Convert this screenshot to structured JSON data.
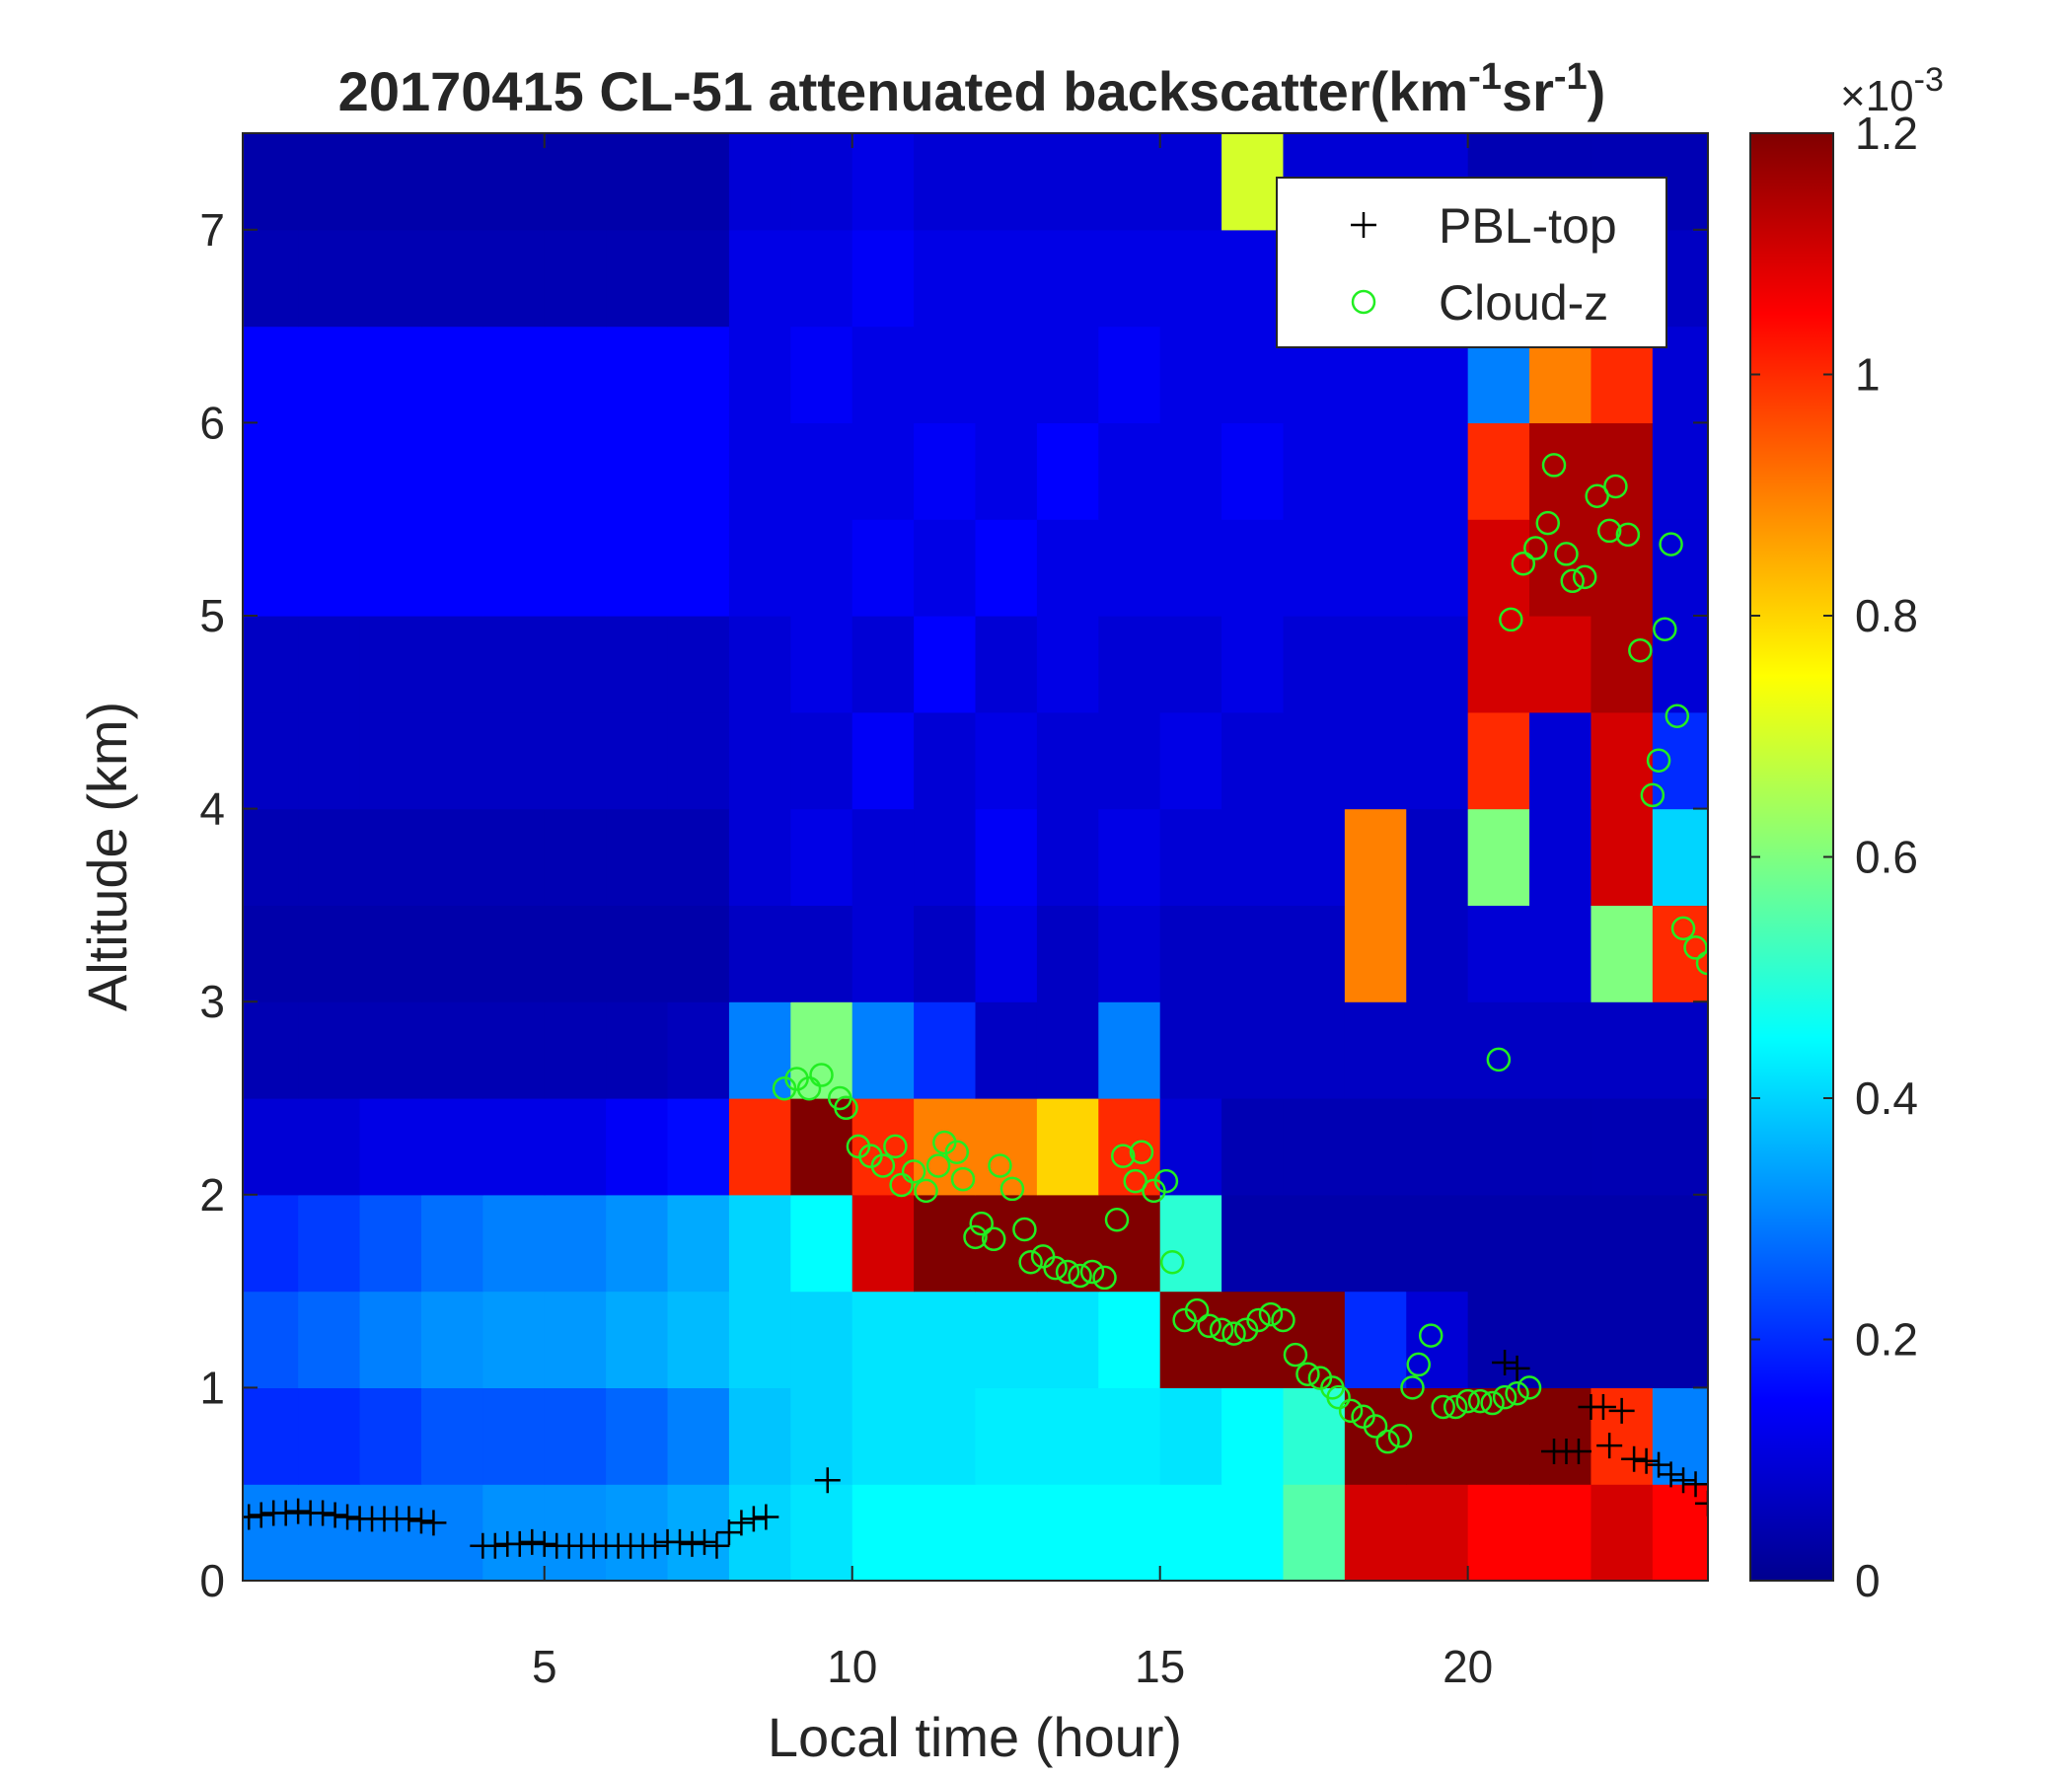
{
  "chart_data": {
    "type": "heatmap",
    "title_parts": [
      "20170415  CL-51 attenuated backscatter(km",
      "-1",
      "sr",
      "-1",
      ")"
    ],
    "xlabel": "Local time (hour)",
    "ylabel": "Altitude (km)",
    "xlim": [
      0.1,
      23.9
    ],
    "ylim": [
      0,
      7.5
    ],
    "xticks": [
      5,
      10,
      15,
      20
    ],
    "yticks": [
      0,
      1,
      2,
      3,
      4,
      5,
      6,
      7
    ],
    "colorbar": {
      "clim": [
        0,
        1.2
      ],
      "ticks": [
        0,
        0.2,
        0.4,
        0.6,
        0.8,
        1,
        1.2
      ],
      "exponent_parts": [
        "×10",
        "-3"
      ],
      "colormap": "jet"
    },
    "x": [
      0.5,
      1.5,
      2.5,
      3.5,
      4.5,
      5.5,
      6.5,
      7.5,
      8.5,
      9.5,
      10.5,
      11.5,
      12.5,
      13.5,
      14.5,
      15.5,
      16.5,
      17.5,
      18.5,
      19.5,
      20.5,
      21.5,
      22.5,
      23.5
    ],
    "y": [
      0.25,
      0.75,
      1.25,
      1.75,
      2.25,
      2.75,
      3.25,
      3.75,
      4.25,
      4.75,
      5.25,
      5.75,
      6.25,
      6.75,
      7.25
    ],
    "z": [
      [
        0.3,
        0.3,
        0.3,
        0.3,
        0.32,
        0.32,
        0.33,
        0.35,
        0.4,
        0.42,
        0.45,
        0.45,
        0.45,
        0.45,
        0.45,
        0.45,
        0.45,
        0.55,
        1.1,
        1.1,
        1.05,
        1.05,
        1.1,
        1.05
      ],
      [
        0.2,
        0.2,
        0.22,
        0.25,
        0.25,
        0.25,
        0.27,
        0.3,
        0.38,
        0.4,
        0.42,
        0.42,
        0.43,
        0.43,
        0.43,
        0.42,
        0.45,
        0.5,
        1.2,
        1.2,
        1.2,
        1.2,
        1.0,
        0.3
      ],
      [
        0.25,
        0.27,
        0.3,
        0.32,
        0.33,
        0.33,
        0.35,
        0.37,
        0.4,
        0.4,
        0.42,
        0.42,
        0.42,
        0.42,
        0.45,
        1.2,
        1.2,
        1.2,
        0.2,
        0.1,
        0.05,
        0.05,
        0.05,
        0.05
      ],
      [
        0.2,
        0.22,
        0.25,
        0.28,
        0.3,
        0.3,
        0.32,
        0.35,
        0.4,
        0.45,
        1.1,
        1.2,
        1.2,
        1.2,
        1.2,
        0.5,
        0.05,
        0.05,
        0.05,
        0.05,
        0.05,
        0.05,
        0.05,
        0.05
      ],
      [
        0.1,
        0.1,
        0.12,
        0.12,
        0.12,
        0.12,
        0.14,
        0.16,
        1.0,
        1.2,
        1.0,
        0.9,
        0.9,
        0.8,
        1.0,
        0.1,
        0.06,
        0.06,
        0.06,
        0.06,
        0.06,
        0.06,
        0.06,
        0.06
      ],
      [
        0.06,
        0.06,
        0.06,
        0.06,
        0.06,
        0.06,
        0.06,
        0.07,
        0.3,
        0.6,
        0.3,
        0.2,
        0.08,
        0.08,
        0.3,
        0.08,
        0.08,
        0.08,
        0.08,
        0.08,
        0.08,
        0.08,
        0.08,
        0.08
      ],
      [
        0.05,
        0.05,
        0.05,
        0.05,
        0.05,
        0.05,
        0.05,
        0.05,
        0.08,
        0.08,
        0.1,
        0.08,
        0.12,
        0.08,
        0.1,
        0.08,
        0.08,
        0.08,
        0.9,
        0.08,
        0.1,
        0.1,
        0.6,
        1.0
      ],
      [
        0.06,
        0.06,
        0.06,
        0.06,
        0.06,
        0.06,
        0.06,
        0.06,
        0.1,
        0.12,
        0.1,
        0.1,
        0.14,
        0.1,
        0.12,
        0.1,
        0.1,
        0.1,
        0.9,
        0.08,
        0.6,
        0.1,
        1.1,
        0.4
      ],
      [
        0.08,
        0.08,
        0.08,
        0.08,
        0.08,
        0.08,
        0.08,
        0.08,
        0.1,
        0.1,
        0.14,
        0.1,
        0.12,
        0.1,
        0.1,
        0.12,
        0.1,
        0.1,
        0.1,
        0.1,
        1.0,
        0.1,
        1.1,
        0.2
      ],
      [
        0.08,
        0.08,
        0.08,
        0.08,
        0.08,
        0.08,
        0.08,
        0.08,
        0.1,
        0.12,
        0.1,
        0.15,
        0.1,
        0.12,
        0.1,
        0.1,
        0.12,
        0.1,
        0.1,
        0.1,
        1.1,
        1.1,
        1.15,
        0.1
      ],
      [
        0.15,
        0.15,
        0.15,
        0.15,
        0.15,
        0.15,
        0.15,
        0.15,
        0.12,
        0.12,
        0.14,
        0.12,
        0.15,
        0.12,
        0.12,
        0.12,
        0.12,
        0.12,
        0.12,
        0.12,
        1.1,
        1.15,
        1.15,
        0.1
      ],
      [
        0.15,
        0.15,
        0.15,
        0.15,
        0.15,
        0.15,
        0.15,
        0.15,
        0.12,
        0.12,
        0.12,
        0.14,
        0.12,
        0.15,
        0.12,
        0.12,
        0.14,
        0.12,
        0.12,
        0.12,
        1.0,
        1.15,
        1.15,
        0.1
      ],
      [
        0.15,
        0.15,
        0.15,
        0.15,
        0.15,
        0.15,
        0.15,
        0.15,
        0.12,
        0.14,
        0.12,
        0.12,
        0.12,
        0.12,
        0.14,
        0.12,
        0.12,
        0.12,
        0.12,
        0.12,
        0.3,
        0.9,
        1.0,
        0.1
      ],
      [
        0.06,
        0.06,
        0.06,
        0.06,
        0.06,
        0.06,
        0.06,
        0.06,
        0.12,
        0.12,
        0.14,
        0.12,
        0.12,
        0.12,
        0.12,
        0.12,
        0.12,
        0.12,
        0.12,
        0.12,
        0.08,
        0.08,
        0.08,
        0.08
      ],
      [
        0.05,
        0.05,
        0.05,
        0.05,
        0.05,
        0.05,
        0.05,
        0.05,
        0.1,
        0.1,
        0.12,
        0.1,
        0.1,
        0.1,
        0.1,
        0.1,
        0.7,
        0.1,
        0.1,
        0.1,
        0.06,
        0.06,
        0.06,
        0.06
      ]
    ],
    "legend": "upper right",
    "series": [
      {
        "name": "PBL-top",
        "color": "#000000",
        "marker": "plus",
        "x": [
          0.2,
          0.4,
          0.6,
          0.8,
          1.0,
          1.2,
          1.4,
          1.6,
          1.8,
          2.0,
          2.2,
          2.4,
          2.6,
          2.8,
          3.0,
          3.2,
          4.0,
          4.2,
          4.4,
          4.6,
          4.8,
          5.0,
          5.2,
          5.4,
          5.6,
          5.8,
          6.0,
          6.2,
          6.4,
          6.6,
          6.8,
          7.0,
          7.2,
          7.4,
          7.6,
          7.8,
          8.0,
          8.2,
          8.4,
          8.6,
          9.6,
          20.6,
          20.8,
          21.4,
          21.6,
          21.8,
          22.0,
          22.2,
          22.3,
          22.5,
          22.7,
          22.9,
          23.1,
          23.3,
          23.5,
          23.7,
          23.9
        ],
        "y": [
          0.33,
          0.34,
          0.35,
          0.35,
          0.36,
          0.35,
          0.35,
          0.34,
          0.33,
          0.32,
          0.32,
          0.32,
          0.32,
          0.32,
          0.31,
          0.3,
          0.18,
          0.18,
          0.19,
          0.19,
          0.2,
          0.19,
          0.18,
          0.18,
          0.18,
          0.18,
          0.18,
          0.18,
          0.18,
          0.18,
          0.18,
          0.2,
          0.2,
          0.19,
          0.2,
          0.18,
          0.25,
          0.3,
          0.32,
          0.33,
          0.52,
          1.13,
          1.1,
          0.67,
          0.67,
          0.67,
          0.9,
          0.9,
          0.7,
          0.88,
          0.63,
          0.62,
          0.6,
          0.55,
          0.52,
          0.5,
          0.4
        ]
      },
      {
        "name": "Cloud-z",
        "color": "#22ee22",
        "marker": "circle",
        "x": [
          8.9,
          9.1,
          9.3,
          9.5,
          9.8,
          9.9,
          10.1,
          10.3,
          10.5,
          10.7,
          10.8,
          11.0,
          11.2,
          11.4,
          11.5,
          11.7,
          11.8,
          12.0,
          12.1,
          12.3,
          12.4,
          12.6,
          12.8,
          12.9,
          13.1,
          13.3,
          13.5,
          13.7,
          13.9,
          14.1,
          14.3,
          14.4,
          14.6,
          14.7,
          14.9,
          15.1,
          15.2,
          15.4,
          15.6,
          15.8,
          16.0,
          16.2,
          16.4,
          16.6,
          16.8,
          17.0,
          17.2,
          17.4,
          17.6,
          17.8,
          17.9,
          18.1,
          18.3,
          18.5,
          18.7,
          18.9,
          19.1,
          19.2,
          19.4,
          19.6,
          19.8,
          20.0,
          20.2,
          20.4,
          20.6,
          20.8,
          21.0,
          20.5,
          20.7,
          20.9,
          21.1,
          21.3,
          21.4,
          21.6,
          21.7,
          21.9,
          22.1,
          22.3,
          22.4,
          22.6,
          22.8,
          23.0,
          23.1,
          23.2,
          23.3,
          23.4,
          23.5,
          23.7,
          23.9
        ],
        "y": [
          2.55,
          2.6,
          2.55,
          2.62,
          2.5,
          2.45,
          2.25,
          2.2,
          2.15,
          2.25,
          2.05,
          2.12,
          2.02,
          2.15,
          2.27,
          2.22,
          2.08,
          1.78,
          1.85,
          1.77,
          2.15,
          2.03,
          1.82,
          1.65,
          1.68,
          1.62,
          1.6,
          1.58,
          1.6,
          1.57,
          1.87,
          2.2,
          2.07,
          2.22,
          2.02,
          2.07,
          1.65,
          1.35,
          1.4,
          1.32,
          1.3,
          1.28,
          1.3,
          1.35,
          1.38,
          1.35,
          1.17,
          1.07,
          1.05,
          1.0,
          0.95,
          0.88,
          0.85,
          0.8,
          0.72,
          0.75,
          1.0,
          1.12,
          1.27,
          0.9,
          0.9,
          0.93,
          0.93,
          0.92,
          0.95,
          0.97,
          1.0,
          2.7,
          4.98,
          5.27,
          5.35,
          5.48,
          5.78,
          5.32,
          5.18,
          5.2,
          5.62,
          5.44,
          5.67,
          5.42,
          4.82,
          4.07,
          4.25,
          4.93,
          5.37,
          4.48,
          3.38,
          3.28,
          3.2
        ]
      }
    ]
  }
}
